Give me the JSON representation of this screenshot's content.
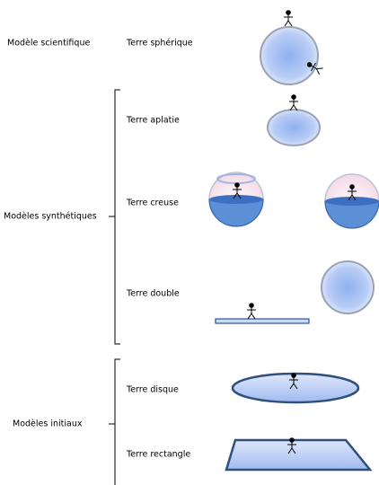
{
  "groups": [
    {
      "label": "Modèle scientifique",
      "items": [
        "Terre sphérique"
      ]
    },
    {
      "label": "Modèles synthétiques",
      "items": [
        "Terre aplatie",
        "Terre creuse",
        "Terre double"
      ]
    },
    {
      "label": "Modèles initiaux",
      "items": [
        "Terre disque",
        "Terre rectangle"
      ]
    }
  ]
}
